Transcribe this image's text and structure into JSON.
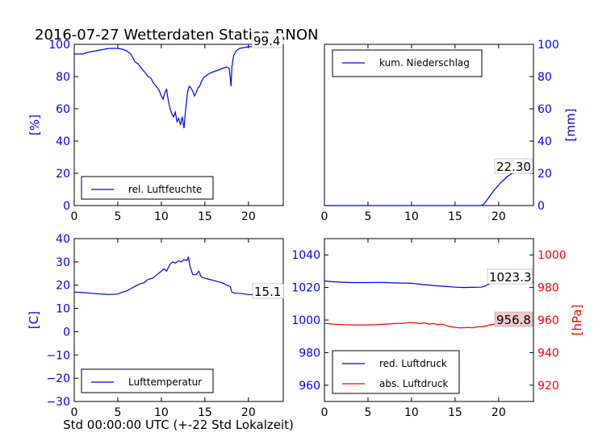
{
  "title": "2016-07-27 Wetterdaten Station RNON",
  "xlabel": "Std 00:00:00 UTC (+-22 Std Lokalzeit)",
  "colors": {
    "blue": "#0000ff",
    "red": "#ff0000",
    "label_box": "#ffffff",
    "label_box_red": "#f3c8c8"
  },
  "chart_data": [
    {
      "type": "line",
      "id": "humidity",
      "ylabel": "[%]",
      "ylim": [
        0,
        100
      ],
      "xlim": [
        0,
        24
      ],
      "xticks": [
        0,
        5,
        10,
        15,
        20
      ],
      "yticks": [
        0,
        20,
        40,
        60,
        80,
        100
      ],
      "legend": "lower-left",
      "last_value_label": "99.4",
      "series": [
        {
          "name": "rel. Luftfeuchte",
          "color": "#0000ff",
          "x": [
            0,
            0.5,
            1,
            1.5,
            2,
            2.5,
            3,
            3.5,
            4,
            4.5,
            5,
            5.5,
            6,
            6.5,
            7,
            7.3,
            7.6,
            7.9,
            8.2,
            8.5,
            8.8,
            9.1,
            9.4,
            9.7,
            10,
            10.2,
            10.4,
            10.6,
            10.8,
            11,
            11.2,
            11.4,
            11.6,
            11.8,
            12,
            12.2,
            12.4,
            12.6,
            12.8,
            13,
            13.2,
            13.4,
            13.6,
            13.8,
            14,
            14.2,
            14.4,
            14.6,
            14.8,
            15,
            15.5,
            16,
            16.5,
            17,
            17.5,
            17.8,
            18,
            18.1,
            18.3,
            18.6,
            19,
            19.5,
            20,
            21,
            22,
            23,
            24
          ],
          "y": [
            94,
            94,
            94,
            95,
            95.5,
            96,
            96.5,
            97,
            97.5,
            97.5,
            97.5,
            97,
            96,
            94,
            89,
            88,
            86,
            84,
            82,
            80,
            79,
            76,
            74,
            72,
            68,
            66,
            70,
            72,
            65,
            60,
            57,
            55,
            58,
            52,
            54,
            50,
            55,
            48,
            60,
            70,
            74,
            73,
            71,
            68,
            70,
            73,
            74,
            77,
            79,
            80,
            82,
            83,
            84,
            85,
            86,
            85,
            74,
            86,
            93,
            96,
            97.5,
            98,
            98.5,
            99,
            99.2,
            99.3,
            99.4
          ]
        }
      ]
    },
    {
      "type": "line",
      "id": "precipitation",
      "ylabel": "[mm]",
      "ylim": [
        0,
        100
      ],
      "xlim": [
        0,
        24
      ],
      "xticks": [
        0,
        5,
        10,
        15,
        20
      ],
      "yticks": [
        0,
        20,
        40,
        60,
        80,
        100
      ],
      "legend": "top-left",
      "last_value_label": "22.30",
      "series": [
        {
          "name": "kum. Niederschlag",
          "color": "#0000ff",
          "x": [
            0,
            5,
            10,
            15,
            17,
            18,
            18.3,
            18.6,
            19,
            19.4,
            19.8,
            20.2,
            20.6,
            21,
            21.5,
            22,
            22.5,
            23,
            23.5,
            24
          ],
          "y": [
            0,
            0,
            0,
            0,
            0,
            0,
            1,
            3,
            6,
            9,
            11.5,
            14,
            16,
            18,
            19.8,
            21,
            21.7,
            22,
            22.2,
            22.3
          ]
        }
      ]
    },
    {
      "type": "line",
      "id": "temperature",
      "ylabel": "[C]",
      "ylim": [
        -30,
        40
      ],
      "xlim": [
        0,
        24
      ],
      "xticks": [
        0,
        5,
        10,
        15,
        20
      ],
      "yticks": [
        -30,
        -20,
        -10,
        0,
        10,
        20,
        30,
        40
      ],
      "legend": "lower-left",
      "last_value_label": "15.1",
      "series": [
        {
          "name": "Lufttemperatur",
          "color": "#0000ff",
          "x": [
            0,
            1,
            2,
            3,
            4,
            5,
            5.5,
            6,
            6.5,
            7,
            7.5,
            8,
            8.5,
            9,
            9.5,
            10,
            10.3,
            10.6,
            11,
            11.3,
            11.6,
            12,
            12.3,
            12.6,
            12.9,
            13.1,
            13.3,
            13.6,
            14,
            14.3,
            14.6,
            15,
            15.5,
            16,
            16.5,
            17,
            17.5,
            17.9,
            18.1,
            18.5,
            19,
            20,
            21,
            22,
            23,
            24
          ],
          "y": [
            17,
            16.8,
            16.5,
            16.2,
            16,
            16.2,
            17,
            17.5,
            18.5,
            19.5,
            20.5,
            21,
            22.5,
            23,
            24.5,
            26,
            27,
            26,
            29,
            30,
            29.5,
            30.5,
            30,
            31,
            30.5,
            32,
            28,
            24.5,
            24.5,
            26,
            23.5,
            23,
            22.5,
            22,
            21.5,
            21,
            20,
            19.5,
            17,
            16.5,
            16.5,
            16,
            15.8,
            15.5,
            15.3,
            15.1
          ]
        }
      ]
    },
    {
      "type": "line",
      "id": "pressure",
      "ylabel": "[hPa]",
      "ylim_left": [
        950,
        1050
      ],
      "ylim_right": [
        910,
        1010
      ],
      "xlim": [
        0,
        24
      ],
      "xticks": [
        0,
        5,
        10,
        15,
        20
      ],
      "yticks_left": [
        960,
        980,
        1000,
        1020,
        1040
      ],
      "yticks_right": [
        920,
        940,
        960,
        980,
        1000
      ],
      "legend": "lower-left",
      "last_value_labels": [
        "1023.3",
        "956.8"
      ],
      "series": [
        {
          "name": "red. Luftdruck",
          "color": "#0000ff",
          "axis": "left",
          "x": [
            0,
            1,
            2,
            3,
            4,
            5,
            6,
            7,
            8,
            9,
            10,
            11,
            12,
            13,
            14,
            15,
            16,
            17,
            18,
            18.5,
            19,
            20,
            21,
            22,
            23,
            24
          ],
          "y": [
            1024,
            1023.5,
            1023.2,
            1023,
            1023,
            1023,
            1023.1,
            1023,
            1022.8,
            1022.7,
            1022.6,
            1022,
            1021.5,
            1021,
            1020.6,
            1020.2,
            1020,
            1020.1,
            1020.2,
            1021,
            1022.5,
            1023,
            1023.1,
            1023.2,
            1023.3,
            1023.3
          ]
        },
        {
          "name": "abs. Luftdruck",
          "color": "#ff0000",
          "axis": "right",
          "x": [
            0,
            1,
            2,
            3,
            4,
            5,
            6,
            7,
            8,
            9,
            10,
            10.5,
            11,
            11.5,
            12,
            12.5,
            13,
            13.5,
            14,
            14.5,
            15,
            15.5,
            16,
            16.5,
            17,
            17.5,
            18,
            18.5,
            19,
            20,
            21,
            22,
            23,
            24
          ],
          "y": [
            958,
            957.5,
            957.2,
            957,
            957,
            957,
            957.2,
            957.5,
            957.8,
            958,
            958.5,
            958.2,
            957.8,
            958.3,
            957.5,
            957.8,
            957.2,
            957.5,
            956.5,
            956,
            955.5,
            955.2,
            955.3,
            955.5,
            955.2,
            955.8,
            956,
            956.3,
            957,
            957.8,
            957.2,
            956.9,
            956.8,
            956.8
          ]
        }
      ]
    }
  ]
}
